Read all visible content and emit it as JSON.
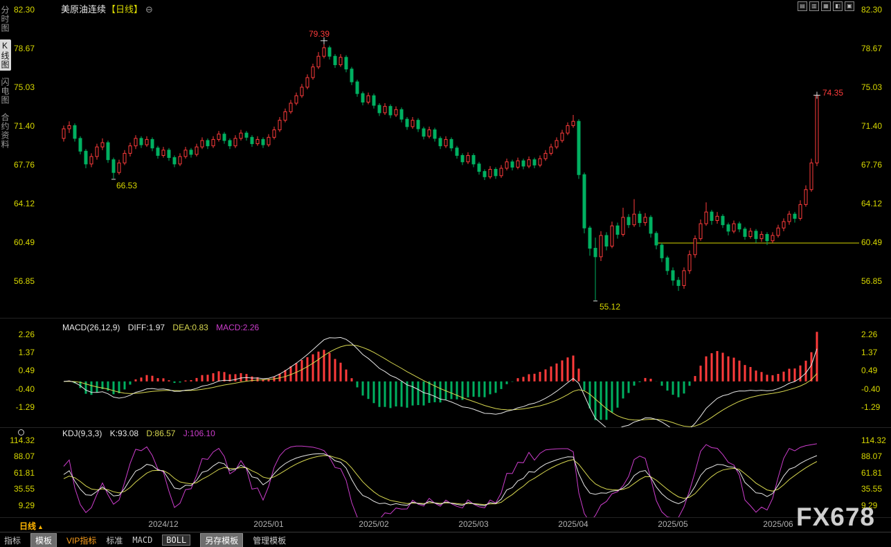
{
  "header": {
    "instrument": "美原油连续",
    "period": "【日线】",
    "collapse_icon": "⊖",
    "layout_icons": [
      "▤",
      "▥",
      "▦",
      "◧",
      "▣"
    ]
  },
  "sidebar": {
    "items": [
      {
        "label": "分时图",
        "selected": false
      },
      {
        "label": "K线图",
        "selected": true
      },
      {
        "label": "闪电图",
        "selected": false
      },
      {
        "label": "合约资料",
        "selected": false
      }
    ]
  },
  "axes": {
    "main": {
      "labels": [
        "82.30",
        "78.67",
        "75.03",
        "71.40",
        "67.76",
        "64.12",
        "60.49",
        "56.85"
      ],
      "prices": [
        82.3,
        78.67,
        75.03,
        71.4,
        67.76,
        64.12,
        60.49,
        56.85
      ]
    },
    "macd": {
      "labels": [
        "2.26",
        "1.37",
        "0.49",
        "-0.40",
        "-1.29"
      ],
      "values": [
        2.26,
        1.37,
        0.49,
        -0.4,
        -1.29
      ]
    },
    "kdj": {
      "labels": [
        "114.32",
        "88.07",
        "61.81",
        "35.55",
        "9.29"
      ],
      "values": [
        114.32,
        88.07,
        61.81,
        35.55,
        9.29
      ]
    }
  },
  "main_chart": {
    "annotations": {
      "peak": "79.39",
      "low1": "66.53",
      "low2": "55.12",
      "last": "74.35"
    }
  },
  "macd_panel": {
    "name": "MACD(26,12,9)",
    "diff": "DIFF:1.97",
    "dea": "DEA:0.83",
    "macd": "MACD:2.26"
  },
  "kdj_panel": {
    "name": "KDJ(9,3,3)",
    "k": "K:93.08",
    "d": "D:86.57",
    "j": "J:106.10"
  },
  "x_axis": {
    "labels": [
      "2024/12",
      "2025/01",
      "2025/02",
      "2025/03",
      "2025/04",
      "2025/05",
      "2025/06"
    ],
    "period_label": "日线",
    "period_arrow": "▲"
  },
  "watermark": "FX678",
  "bottom_bar": {
    "items": [
      {
        "label": "指标"
      },
      {
        "label": "模板"
      },
      {
        "label": "VIP指标"
      },
      {
        "label": "标准"
      },
      {
        "label": "MACD"
      },
      {
        "label": "BOLL"
      },
      {
        "label": "另存模板"
      },
      {
        "label": "管理模板"
      }
    ]
  },
  "colors": {
    "up": "#ff3b3b",
    "down": "#00b061",
    "axis_text": "#d8d800",
    "support_line": "#d8d800",
    "diff_line": "#e8e8e8",
    "dea_line": "#d8d850",
    "k_line": "#e8e8e8",
    "d_line": "#d8d850",
    "j_line": "#cc3dcc"
  },
  "chart_data": {
    "type": "candlestick",
    "instrument": "美原油连续",
    "period": "日线",
    "y_axis_range": [
      56.85,
      82.3
    ],
    "support_line": 60.49,
    "annotations": {
      "peak": {
        "index": 47,
        "price": 79.39,
        "label": "79.39"
      },
      "low1": {
        "index": 9,
        "price": 66.53,
        "label": "66.53"
      },
      "low2": {
        "index": 96,
        "price": 55.12,
        "label": "55.12"
      },
      "last": {
        "index": 136,
        "price": 74.35,
        "label": "74.35"
      }
    },
    "indicators": {
      "macd": {
        "params": [
          26,
          12,
          9
        ],
        "diff": 1.97,
        "dea": 0.83,
        "macd": 2.26,
        "axis": [
          2.26,
          1.37,
          0.49,
          -0.4,
          -1.29
        ]
      },
      "kdj": {
        "params": [
          9,
          3,
          3
        ],
        "k": 93.08,
        "d": 86.57,
        "j": 106.1,
        "axis": [
          114.32,
          88.07,
          61.81,
          35.55,
          9.29
        ]
      }
    },
    "month_tick_indices": [
      18,
      37,
      56,
      74,
      92,
      110,
      129
    ],
    "month_tick_labels": [
      "2024/12",
      "2025/01",
      "2025/02",
      "2025/03",
      "2025/04",
      "2025/05",
      "2025/06"
    ],
    "candles": [
      [
        70.3,
        71.5,
        70.0,
        71.2
      ],
      [
        71.2,
        71.9,
        70.8,
        71.5
      ],
      [
        71.5,
        71.7,
        70.0,
        70.3
      ],
      [
        70.3,
        70.5,
        68.8,
        69.1
      ],
      [
        69.1,
        69.3,
        67.5,
        67.9
      ],
      [
        67.9,
        68.9,
        67.6,
        68.6
      ],
      [
        68.6,
        69.8,
        68.3,
        69.5
      ],
      [
        69.5,
        70.3,
        69.2,
        69.9
      ],
      [
        69.9,
        70.1,
        68.0,
        68.3
      ],
      [
        68.3,
        68.5,
        66.53,
        67.1
      ],
      [
        67.1,
        68.3,
        66.9,
        68.0
      ],
      [
        68.0,
        69.2,
        67.8,
        68.9
      ],
      [
        68.9,
        69.9,
        68.6,
        69.6
      ],
      [
        69.6,
        70.6,
        69.3,
        70.3
      ],
      [
        70.3,
        70.5,
        69.4,
        69.7
      ],
      [
        69.7,
        70.5,
        69.5,
        70.2
      ],
      [
        70.2,
        70.4,
        69.1,
        69.4
      ],
      [
        69.4,
        69.6,
        68.4,
        68.7
      ],
      [
        68.7,
        69.5,
        68.5,
        69.2
      ],
      [
        69.2,
        69.4,
        68.2,
        68.5
      ],
      [
        68.5,
        68.7,
        67.6,
        67.9
      ],
      [
        67.9,
        68.9,
        67.7,
        68.6
      ],
      [
        68.6,
        69.5,
        68.4,
        69.2
      ],
      [
        69.2,
        69.4,
        68.5,
        68.8
      ],
      [
        68.8,
        69.8,
        68.6,
        69.5
      ],
      [
        69.5,
        70.4,
        69.3,
        70.1
      ],
      [
        70.1,
        70.3,
        69.3,
        69.6
      ],
      [
        69.6,
        70.5,
        69.4,
        70.2
      ],
      [
        70.2,
        71.0,
        70.0,
        70.7
      ],
      [
        70.7,
        70.9,
        69.8,
        70.1
      ],
      [
        70.1,
        70.3,
        69.3,
        69.6
      ],
      [
        69.6,
        70.6,
        69.4,
        70.3
      ],
      [
        70.3,
        71.1,
        70.1,
        70.8
      ],
      [
        70.8,
        71.0,
        70.1,
        70.4
      ],
      [
        70.4,
        70.6,
        69.5,
        69.8
      ],
      [
        69.8,
        70.5,
        69.6,
        70.2
      ],
      [
        70.2,
        70.4,
        69.4,
        69.7
      ],
      [
        69.7,
        70.7,
        69.5,
        70.4
      ],
      [
        70.4,
        71.4,
        70.2,
        71.1
      ],
      [
        71.1,
        72.3,
        70.9,
        72.0
      ],
      [
        72.0,
        73.1,
        71.8,
        72.8
      ],
      [
        72.8,
        73.9,
        72.6,
        73.6
      ],
      [
        73.6,
        74.6,
        73.4,
        74.3
      ],
      [
        74.3,
        75.4,
        74.1,
        75.1
      ],
      [
        75.1,
        76.3,
        74.9,
        76.0
      ],
      [
        76.0,
        77.3,
        75.8,
        77.0
      ],
      [
        77.0,
        78.4,
        76.8,
        78.0
      ],
      [
        78.0,
        79.39,
        77.8,
        78.8
      ],
      [
        78.8,
        79.0,
        77.7,
        78.0
      ],
      [
        78.0,
        78.2,
        76.9,
        77.2
      ],
      [
        77.2,
        78.2,
        77.0,
        77.9
      ],
      [
        77.9,
        78.1,
        76.5,
        76.8
      ],
      [
        76.8,
        77.0,
        75.3,
        75.6
      ],
      [
        75.6,
        75.8,
        74.2,
        74.5
      ],
      [
        74.5,
        74.7,
        73.4,
        73.7
      ],
      [
        73.7,
        74.6,
        73.5,
        74.3
      ],
      [
        74.3,
        74.5,
        73.1,
        73.4
      ],
      [
        73.4,
        73.6,
        72.4,
        72.7
      ],
      [
        72.7,
        73.6,
        72.5,
        73.3
      ],
      [
        73.3,
        73.5,
        72.2,
        72.5
      ],
      [
        72.5,
        73.3,
        72.3,
        73.0
      ],
      [
        73.0,
        73.2,
        71.8,
        72.1
      ],
      [
        72.1,
        72.3,
        71.1,
        71.4
      ],
      [
        71.4,
        72.3,
        71.2,
        72.0
      ],
      [
        72.0,
        72.2,
        70.9,
        71.2
      ],
      [
        71.2,
        71.4,
        70.2,
        70.5
      ],
      [
        70.5,
        71.4,
        70.3,
        71.1
      ],
      [
        71.1,
        71.3,
        70.0,
        70.3
      ],
      [
        70.3,
        70.5,
        69.3,
        69.6
      ],
      [
        69.6,
        70.5,
        69.4,
        70.2
      ],
      [
        70.2,
        70.4,
        69.1,
        69.4
      ],
      [
        69.4,
        69.6,
        68.4,
        68.7
      ],
      [
        68.7,
        68.9,
        67.8,
        68.1
      ],
      [
        68.1,
        69.0,
        67.9,
        68.7
      ],
      [
        68.7,
        68.9,
        67.6,
        67.9
      ],
      [
        67.9,
        68.1,
        66.9,
        67.2
      ],
      [
        67.2,
        67.4,
        66.4,
        66.7
      ],
      [
        66.7,
        67.7,
        66.5,
        67.4
      ],
      [
        67.4,
        67.6,
        66.5,
        66.8
      ],
      [
        66.8,
        67.8,
        66.6,
        67.5
      ],
      [
        67.5,
        68.4,
        67.3,
        68.1
      ],
      [
        68.1,
        68.3,
        67.3,
        67.6
      ],
      [
        67.6,
        68.5,
        67.4,
        68.2
      ],
      [
        68.2,
        68.4,
        67.4,
        67.7
      ],
      [
        67.7,
        68.6,
        67.5,
        68.3
      ],
      [
        68.3,
        68.5,
        67.5,
        67.8
      ],
      [
        67.8,
        68.7,
        67.6,
        68.4
      ],
      [
        68.4,
        69.2,
        68.2,
        68.9
      ],
      [
        68.9,
        69.8,
        68.7,
        69.5
      ],
      [
        69.5,
        70.4,
        69.3,
        70.1
      ],
      [
        70.1,
        71.1,
        69.9,
        70.8
      ],
      [
        70.8,
        71.8,
        70.6,
        71.5
      ],
      [
        71.5,
        72.5,
        71.3,
        71.9
      ],
      [
        71.9,
        72.1,
        66.5,
        66.9
      ],
      [
        66.9,
        67.1,
        61.4,
        61.9
      ],
      [
        61.9,
        62.1,
        59.3,
        60.0
      ],
      [
        60.0,
        61.0,
        55.12,
        59.2
      ],
      [
        59.2,
        61.6,
        58.8,
        61.2
      ],
      [
        61.2,
        61.5,
        59.8,
        60.2
      ],
      [
        60.2,
        62.5,
        60.0,
        62.1
      ],
      [
        62.1,
        62.4,
        60.9,
        61.3
      ],
      [
        61.3,
        63.8,
        61.1,
        62.9
      ],
      [
        62.9,
        63.2,
        61.9,
        62.2
      ],
      [
        62.2,
        64.6,
        62.0,
        63.2
      ],
      [
        63.2,
        63.5,
        62.0,
        62.4
      ],
      [
        62.4,
        63.3,
        62.1,
        62.9
      ],
      [
        62.9,
        63.1,
        61.0,
        61.4
      ],
      [
        61.4,
        61.6,
        59.9,
        60.3
      ],
      [
        60.3,
        60.5,
        58.7,
        59.1
      ],
      [
        59.1,
        59.3,
        57.5,
        57.9
      ],
      [
        57.9,
        58.2,
        56.5,
        57.0
      ],
      [
        57.0,
        57.3,
        56.0,
        56.5
      ],
      [
        56.5,
        58.2,
        56.2,
        57.9
      ],
      [
        57.9,
        59.8,
        57.6,
        59.4
      ],
      [
        59.4,
        61.2,
        59.1,
        60.9
      ],
      [
        60.9,
        62.7,
        60.7,
        62.3
      ],
      [
        62.3,
        64.3,
        62.1,
        63.4
      ],
      [
        63.4,
        63.6,
        62.2,
        62.6
      ],
      [
        62.6,
        63.4,
        62.3,
        63.0
      ],
      [
        63.0,
        63.2,
        61.9,
        62.2
      ],
      [
        62.2,
        62.4,
        61.2,
        61.6
      ],
      [
        61.6,
        62.6,
        61.4,
        62.3
      ],
      [
        62.3,
        62.5,
        61.5,
        61.8
      ],
      [
        61.8,
        62.0,
        60.8,
        61.1
      ],
      [
        61.1,
        61.9,
        60.9,
        61.6
      ],
      [
        61.6,
        61.8,
        60.5,
        60.9
      ],
      [
        60.9,
        61.6,
        60.6,
        61.3
      ],
      [
        61.3,
        61.5,
        60.3,
        60.7
      ],
      [
        60.7,
        61.5,
        60.5,
        61.2
      ],
      [
        61.2,
        62.2,
        61.0,
        61.9
      ],
      [
        61.9,
        62.8,
        61.6,
        62.5
      ],
      [
        62.5,
        63.5,
        62.2,
        63.2
      ],
      [
        63.2,
        63.4,
        62.4,
        62.8
      ],
      [
        62.8,
        64.5,
        62.6,
        64.1
      ],
      [
        64.1,
        65.9,
        63.9,
        65.5
      ],
      [
        65.5,
        68.4,
        65.3,
        68.0
      ],
      [
        68.0,
        74.6,
        67.7,
        74.35
      ]
    ]
  }
}
